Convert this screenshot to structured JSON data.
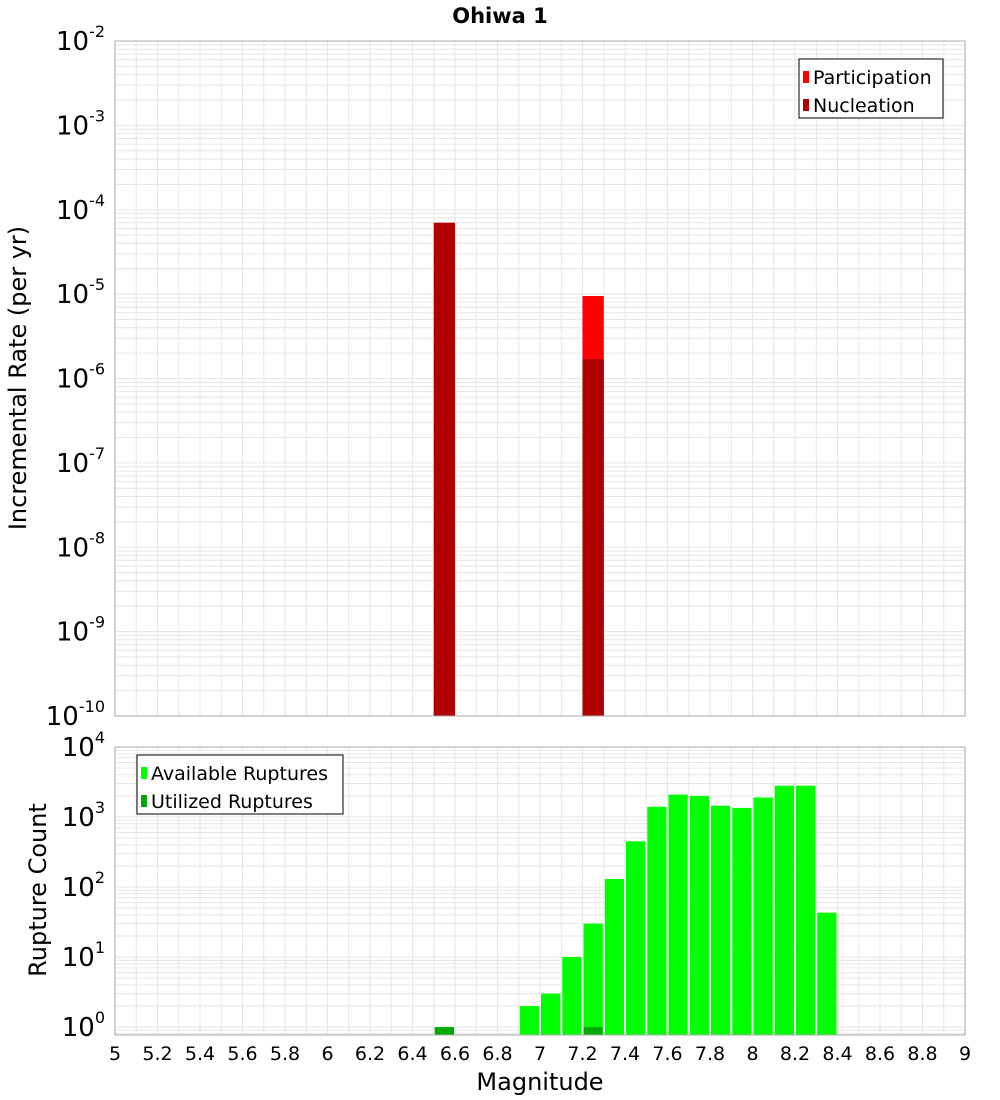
{
  "chart_data": [
    {
      "type": "bar",
      "title": "Ohiwa 1",
      "xlabel": "",
      "ylabel": "Incremental Rate (per yr)",
      "xlim": [
        5,
        9
      ],
      "ylim_exp": [
        -10,
        -2
      ],
      "yscale": "log",
      "grid": true,
      "legend_position": "top-right",
      "ytick_exponents": [
        "-10",
        "-9",
        "-8",
        "-7",
        "-6",
        "-5",
        "-4",
        "-3",
        "-2"
      ],
      "bin_width": 0.1,
      "series": [
        {
          "name": "Participation",
          "color": "#ff0000",
          "points": [
            {
              "x": 6.55,
              "y": 7e-05
            },
            {
              "x": 7.25,
              "y": 9.5e-06
            }
          ]
        },
        {
          "name": "Nucleation",
          "color": "#b00000",
          "points": [
            {
              "x": 6.55,
              "y": 7e-05
            },
            {
              "x": 7.25,
              "y": 1.7e-06
            }
          ]
        }
      ]
    },
    {
      "type": "bar",
      "xlabel": "Magnitude",
      "ylabel": "Rupture Count",
      "xlim": [
        5,
        9
      ],
      "ylim": [
        0.77,
        10000
      ],
      "yscale": "log",
      "grid": true,
      "legend_position": "top-left",
      "ytick_exponents": [
        "0",
        "1",
        "2",
        "3",
        "4"
      ],
      "xticks": [
        "5",
        "5.2",
        "5.4",
        "5.6",
        "5.8",
        "6",
        "6.2",
        "6.4",
        "6.6",
        "6.8",
        "7",
        "7.2",
        "7.4",
        "7.6",
        "7.8",
        "8",
        "8.2",
        "8.4",
        "8.6",
        "8.8",
        "9"
      ],
      "bin_width": 0.1,
      "series": [
        {
          "name": "Available Ruptures",
          "color": "#00ff00",
          "points": [
            {
              "x": 6.55,
              "y": 1
            },
            {
              "x": 6.95,
              "y": 2
            },
            {
              "x": 7.05,
              "y": 3
            },
            {
              "x": 7.15,
              "y": 10
            },
            {
              "x": 7.25,
              "y": 30
            },
            {
              "x": 7.35,
              "y": 130
            },
            {
              "x": 7.45,
              "y": 450
            },
            {
              "x": 7.55,
              "y": 1400
            },
            {
              "x": 7.65,
              "y": 2100
            },
            {
              "x": 7.75,
              "y": 2000
            },
            {
              "x": 7.85,
              "y": 1450
            },
            {
              "x": 7.95,
              "y": 1350
            },
            {
              "x": 8.05,
              "y": 1900
            },
            {
              "x": 8.15,
              "y": 2800
            },
            {
              "x": 8.25,
              "y": 2800
            },
            {
              "x": 8.35,
              "y": 43
            }
          ]
        },
        {
          "name": "Utilized Ruptures",
          "color": "#00aa00",
          "points": [
            {
              "x": 6.55,
              "y": 1
            },
            {
              "x": 7.25,
              "y": 1
            }
          ]
        }
      ]
    }
  ]
}
